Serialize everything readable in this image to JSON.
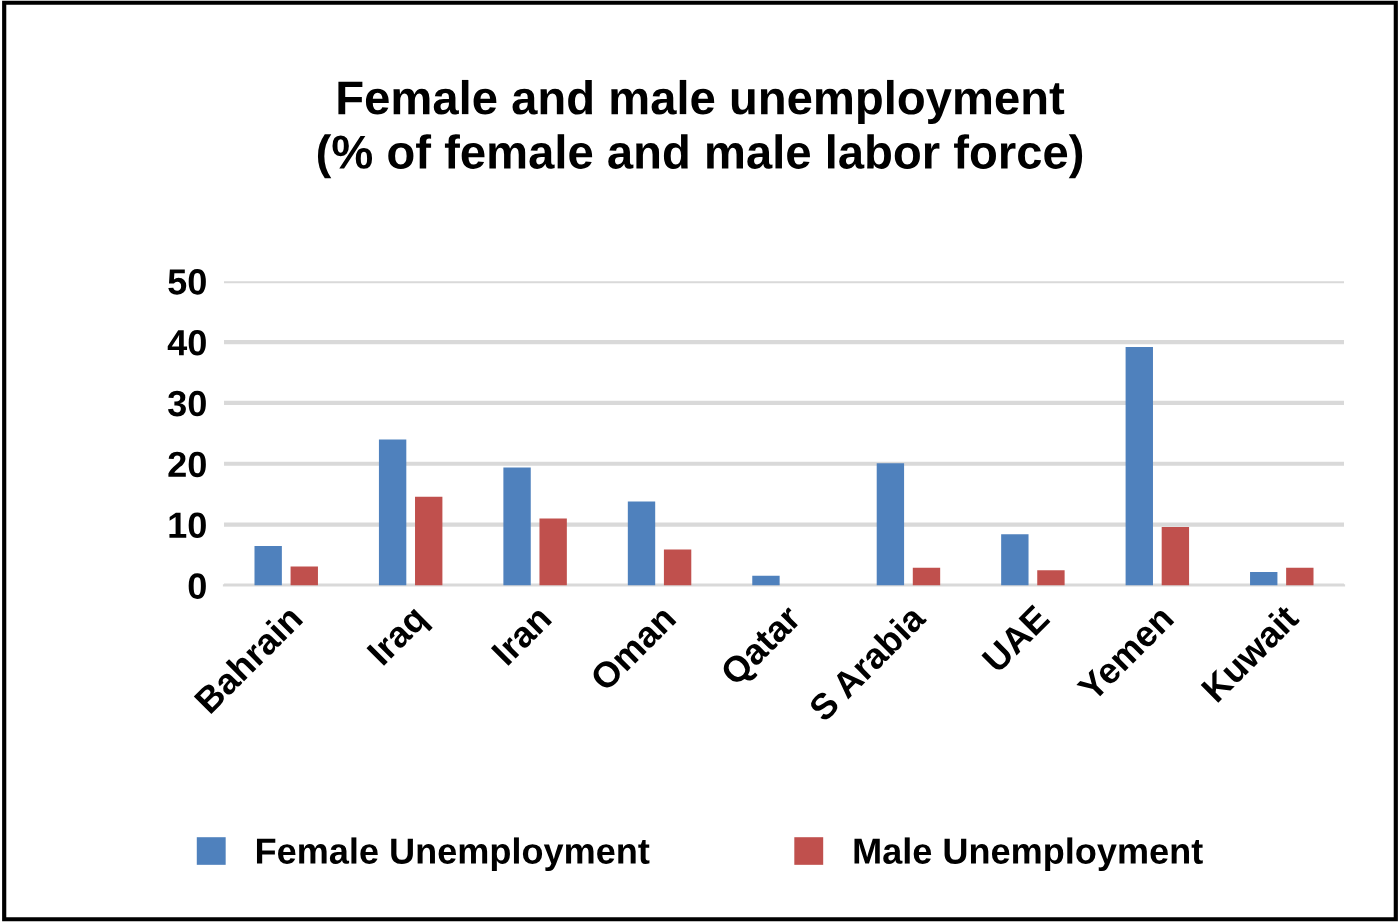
{
  "chart_data": {
    "type": "bar",
    "title": "Female and male unemployment\n(% of female and male labor force)",
    "categories": [
      "Bahrain",
      "Iraq",
      "Iran",
      "Oman",
      "Qatar",
      "S Arabia",
      "UAE",
      "Yemen",
      "Kuwait"
    ],
    "series": [
      {
        "name": "Female Unemployment",
        "color": "#4f81bd",
        "values": [
          6.5,
          24.0,
          19.4,
          13.8,
          1.6,
          20.1,
          8.4,
          39.2,
          2.2
        ]
      },
      {
        "name": "Male Unemployment",
        "color": "#c0504d",
        "values": [
          3.1,
          14.6,
          11.0,
          5.9,
          0,
          2.9,
          2.5,
          9.6,
          2.9
        ]
      }
    ],
    "ylim": [
      0,
      50
    ],
    "yticks": [
      0,
      10,
      20,
      30,
      40,
      50
    ],
    "grid": "y",
    "legend": "bottom"
  }
}
